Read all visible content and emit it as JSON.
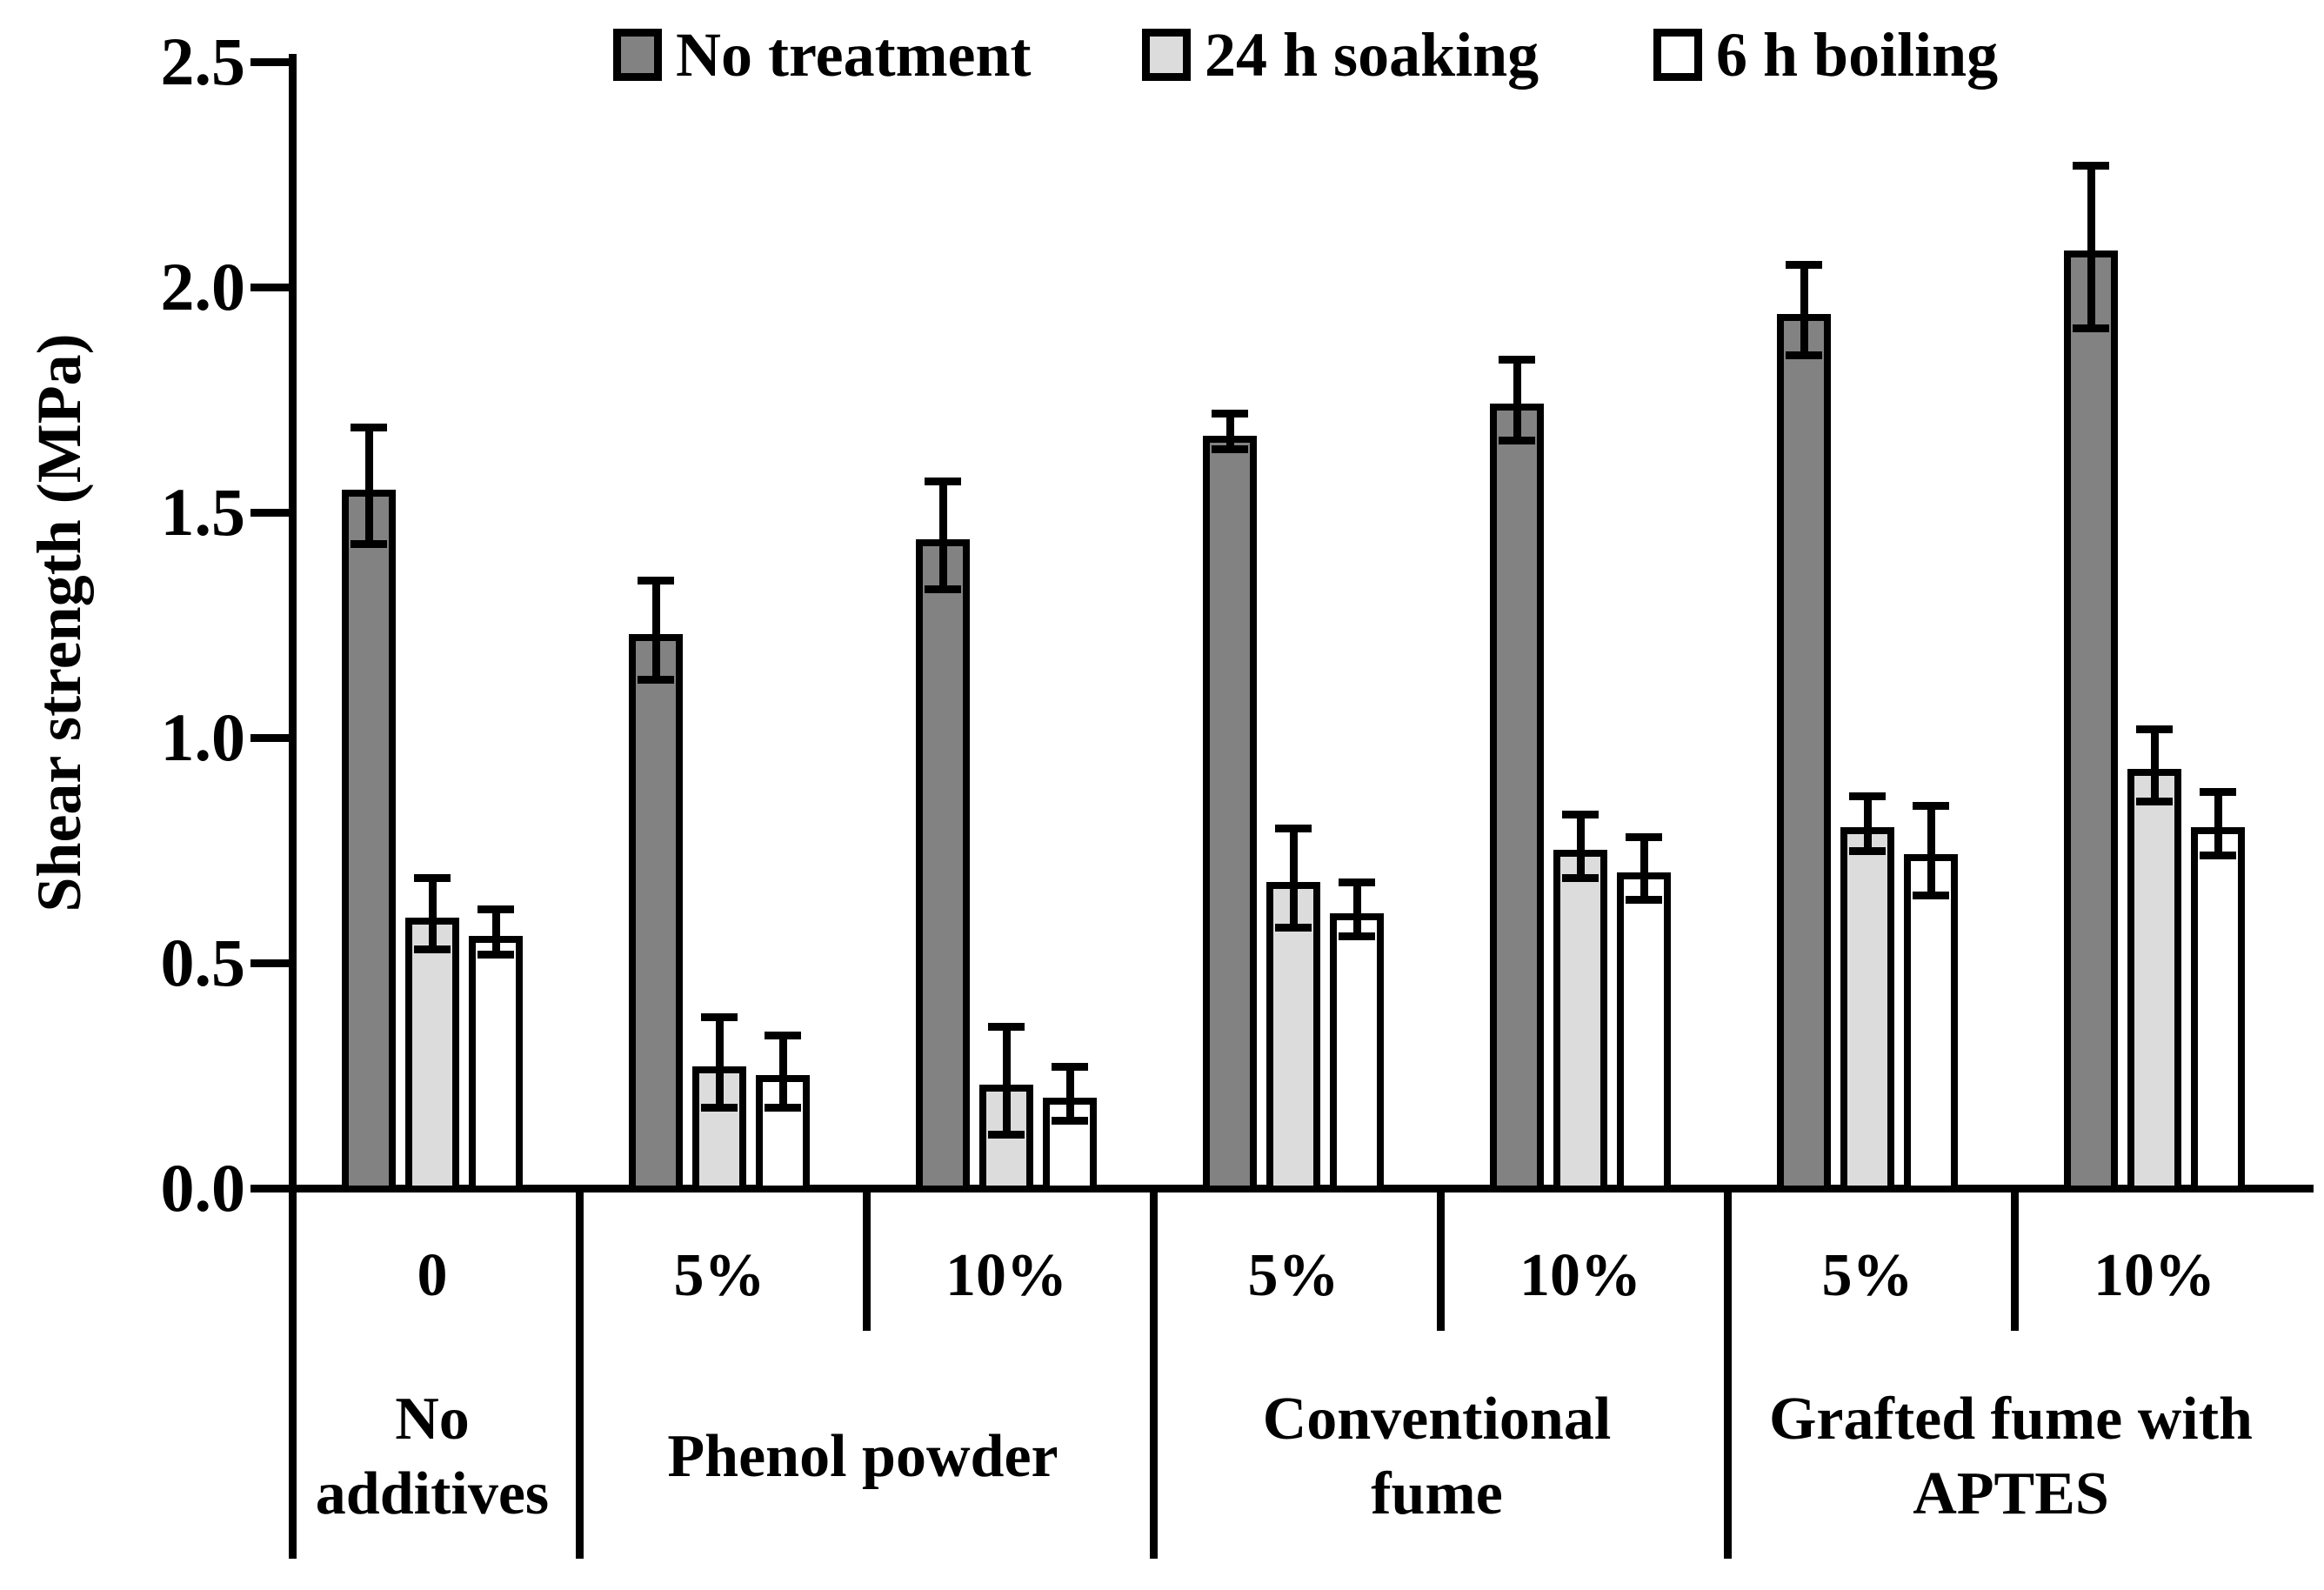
{
  "ylabel": "Shear strength (MPa)",
  "chart_data": {
    "type": "bar",
    "title": "",
    "xlabel": "",
    "ylabel": "Shear strength (MPa)",
    "ylim": [
      0,
      2.5
    ],
    "yticks": [
      "0.0",
      "0.5",
      "1.0",
      "1.5",
      "2.0",
      "2.5"
    ],
    "grid": false,
    "legend_position": "top",
    "error_bars": true,
    "categories": [
      "0",
      "5%",
      "10%",
      "5%",
      "10%",
      "5%",
      "10%"
    ],
    "groups": [
      {
        "label": "No additives",
        "lines": [
          "No",
          "additives"
        ],
        "span": [
          0,
          0
        ]
      },
      {
        "label": "Phenol powder",
        "lines": [
          "Phenol powder"
        ],
        "span": [
          1,
          2
        ]
      },
      {
        "label": "Conventional fume",
        "lines": [
          "Conventional",
          "fume"
        ],
        "span": [
          3,
          4
        ]
      },
      {
        "label": "Grafted fume with APTES",
        "lines": [
          "Grafted fume with",
          "APTES"
        ],
        "span": [
          5,
          6
        ]
      }
    ],
    "series": [
      {
        "name": "No treatment",
        "color": "#828282",
        "values": [
          1.56,
          1.24,
          1.45,
          1.68,
          1.75,
          1.95,
          2.09
        ],
        "errors": [
          0.13,
          0.11,
          0.12,
          0.04,
          0.09,
          0.1,
          0.18
        ]
      },
      {
        "name": "24 h soaking",
        "color": "#dcdcdc",
        "values": [
          0.61,
          0.28,
          0.24,
          0.69,
          0.76,
          0.81,
          0.94
        ],
        "errors": [
          0.08,
          0.1,
          0.12,
          0.11,
          0.07,
          0.06,
          0.08
        ]
      },
      {
        "name": "6 h boiling",
        "color": "#ffffff",
        "values": [
          0.57,
          0.26,
          0.21,
          0.62,
          0.71,
          0.75,
          0.81
        ],
        "errors": [
          0.05,
          0.08,
          0.06,
          0.06,
          0.07,
          0.1,
          0.07
        ]
      }
    ]
  },
  "colors": {
    "axis": "#000000",
    "background": "#ffffff"
  }
}
